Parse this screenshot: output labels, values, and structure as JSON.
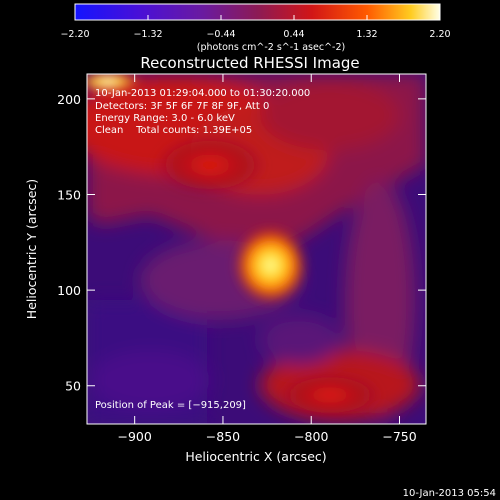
{
  "chart_data": {
    "type": "heatmap",
    "title": "Reconstructed RHESSI Image",
    "xlabel": "Heliocentric X (arcsec)",
    "ylabel": "Heliocentric Y (arcsec)",
    "xlim": [
      -927,
      -735
    ],
    "ylim": [
      30,
      213
    ],
    "xticks": [
      -900,
      -850,
      -800,
      -750
    ],
    "xtick_labels": [
      "−900",
      "−850",
      "−800",
      "−750"
    ],
    "yticks": [
      50,
      100,
      150,
      200
    ],
    "ytick_labels": [
      "50",
      "100",
      "150",
      "200"
    ],
    "colorbar": {
      "range": [
        -2.2,
        2.2
      ],
      "ticks": [
        -2.2,
        -1.32,
        -0.44,
        0.44,
        1.32,
        2.2
      ],
      "tick_labels": [
        "−2.20",
        "−1.32",
        "−0.44",
        "0.44",
        "1.32",
        "2.20"
      ],
      "unit_label": "(photons cm^-2 s^-1 asec^-2)"
    },
    "annotations": [
      "10-Jan-2013 01:29:04.000 to 01:30:20.000",
      "Detectors: 3F 5F 6F 7F 8F 9F, Att 0",
      "Energy Range: 3.0 - 6.0 keV",
      "Clean    Total counts: 1.39E+05"
    ],
    "peak_label": "Position of Peak = [−915,209]",
    "peak_position": [
      -915,
      209
    ],
    "sources": [
      {
        "x": -823,
        "y": 113,
        "value": 2.1
      },
      {
        "x": -915,
        "y": 209,
        "value": 2.2
      }
    ],
    "grid": false
  },
  "footer": {
    "timestamp": "10-Jan-2013 05:54"
  }
}
